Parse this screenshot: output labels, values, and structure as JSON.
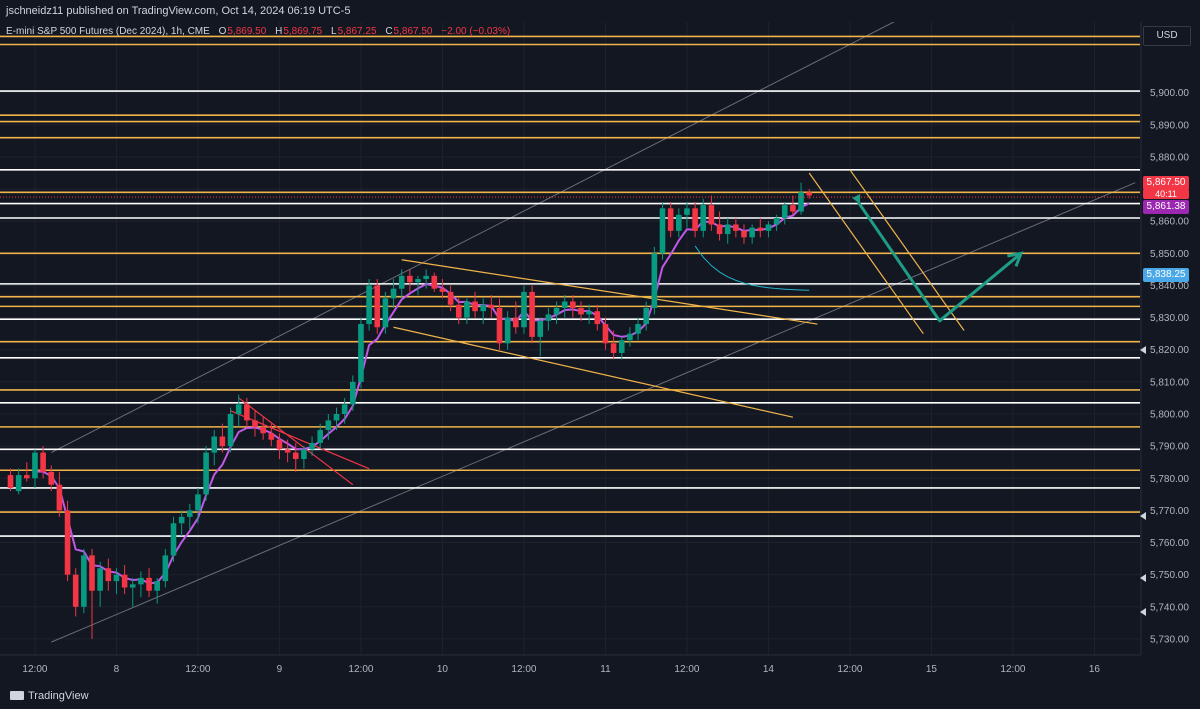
{
  "header": {
    "publisher": "jschneidz11 published on TradingView.com, Oct 14, 2024 06:19 UTC-5",
    "symbol_line": "E-mini S&P 500 Futures (Dec 2024), 1h, CME",
    "ohlc": {
      "o_label": "O",
      "o": "5,869.50",
      "h_label": "H",
      "h": "5,869.75",
      "l_label": "L",
      "l": "5,867.25",
      "c_label": "C",
      "c": "5,867.50",
      "change": "−2.00 (−0.03%)"
    },
    "currency": "USD"
  },
  "footer": {
    "brand": "TradingView"
  },
  "price_tags": {
    "last_price": "5,867.50",
    "countdown": "40:11",
    "vwap": "5,861.38",
    "ma": "5,838.25"
  },
  "colors": {
    "background": "#131722",
    "up_candle": "#089981",
    "down_candle": "#f23645",
    "level_orange": "#f0b44a",
    "level_white": "#ffffff",
    "vwap_purple": "#c058e8",
    "ma_teal": "#22b3c9",
    "projection_arrow": "#1f9c86",
    "last_price_tag": "#f23645",
    "vwap_tag": "#9c27b0",
    "ma_tag": "#4aa8e8"
  },
  "chart_data": {
    "type": "candlestick",
    "title": "E-mini S&P 500 Futures (Dec 2024), 1h, CME",
    "ylim": [
      5725,
      5922
    ],
    "y_ticks": [
      5730,
      5740,
      5750,
      5760,
      5770,
      5780,
      5790,
      5800,
      5810,
      5820,
      5830,
      5840,
      5850,
      5860,
      5870,
      5880,
      5890,
      5900
    ],
    "y_tick_labels": [
      "5,730.00",
      "5,740.00",
      "5,750.00",
      "5,760.00",
      "5,770.00",
      "5,780.00",
      "5,790.00",
      "5,800.00",
      "5,810.00",
      "5,820.00",
      "5,830.00",
      "5,840.00",
      "5,850.00",
      "5,860.00",
      "5,870.00",
      "5,880.00",
      "5,890.00",
      "5,900.00"
    ],
    "x_tick_labels": [
      "12:00",
      "8",
      "12:00",
      "9",
      "12:00",
      "10",
      "12:00",
      "11",
      "12:00",
      "14",
      "12:00",
      "15",
      "12:00",
      "16"
    ],
    "x_tick_bar_index": [
      3,
      13,
      23,
      33,
      43,
      53,
      63,
      73,
      83,
      93,
      103,
      113,
      123,
      133
    ],
    "candles": [
      [
        5781,
        5783,
        5776,
        5777
      ],
      [
        5776,
        5783,
        5775,
        5781
      ],
      [
        5781,
        5785,
        5779,
        5780
      ],
      [
        5780,
        5789,
        5777,
        5788
      ],
      [
        5788,
        5790,
        5780,
        5782
      ],
      [
        5782,
        5784,
        5776,
        5778
      ],
      [
        5778,
        5782,
        5768,
        5770
      ],
      [
        5770,
        5773,
        5748,
        5750
      ],
      [
        5750,
        5752,
        5737,
        5740
      ],
      [
        5740,
        5758,
        5738,
        5756
      ],
      [
        5756,
        5758,
        5730,
        5745
      ],
      [
        5745,
        5754,
        5740,
        5752
      ],
      [
        5752,
        5755,
        5745,
        5748
      ],
      [
        5748,
        5752,
        5744,
        5750
      ],
      [
        5750,
        5753,
        5744,
        5746
      ],
      [
        5746,
        5749,
        5740,
        5747
      ],
      [
        5747,
        5751,
        5743,
        5749
      ],
      [
        5749,
        5752,
        5743,
        5745
      ],
      [
        5745,
        5749,
        5741,
        5748
      ],
      [
        5748,
        5758,
        5746,
        5756
      ],
      [
        5756,
        5768,
        5754,
        5766
      ],
      [
        5766,
        5770,
        5762,
        5768
      ],
      [
        5768,
        5772,
        5764,
        5770
      ],
      [
        5770,
        5777,
        5766,
        5775
      ],
      [
        5775,
        5790,
        5773,
        5788
      ],
      [
        5788,
        5795,
        5784,
        5793
      ],
      [
        5793,
        5797,
        5788,
        5790
      ],
      [
        5790,
        5802,
        5788,
        5800
      ],
      [
        5800,
        5806,
        5796,
        5803
      ],
      [
        5803,
        5805,
        5796,
        5798
      ],
      [
        5798,
        5801,
        5793,
        5796
      ],
      [
        5796,
        5799,
        5792,
        5794
      ],
      [
        5794,
        5797,
        5790,
        5792
      ],
      [
        5792,
        5794,
        5786,
        5789
      ],
      [
        5789,
        5792,
        5785,
        5788
      ],
      [
        5788,
        5791,
        5782,
        5786
      ],
      [
        5786,
        5790,
        5783,
        5789
      ],
      [
        5789,
        5793,
        5787,
        5791
      ],
      [
        5791,
        5797,
        5789,
        5795
      ],
      [
        5795,
        5800,
        5792,
        5798
      ],
      [
        5798,
        5802,
        5795,
        5800
      ],
      [
        5800,
        5805,
        5797,
        5803
      ],
      [
        5803,
        5812,
        5801,
        5810
      ],
      [
        5810,
        5830,
        5808,
        5828
      ],
      [
        5828,
        5842,
        5826,
        5840
      ],
      [
        5840,
        5842,
        5825,
        5827
      ],
      [
        5827,
        5838,
        5825,
        5836
      ],
      [
        5836,
        5842,
        5833,
        5839
      ],
      [
        5839,
        5845,
        5836,
        5843
      ],
      [
        5843,
        5845,
        5838,
        5841
      ],
      [
        5841,
        5843,
        5837,
        5842
      ],
      [
        5842,
        5845,
        5839,
        5843
      ],
      [
        5843,
        5844,
        5838,
        5839
      ],
      [
        5839,
        5842,
        5836,
        5838
      ],
      [
        5838,
        5840,
        5832,
        5834
      ],
      [
        5834,
        5836,
        5828,
        5830
      ],
      [
        5830,
        5836,
        5828,
        5835
      ],
      [
        5835,
        5838,
        5830,
        5832
      ],
      [
        5832,
        5836,
        5828,
        5834
      ],
      [
        5834,
        5837,
        5830,
        5833
      ],
      [
        5833,
        5836,
        5820,
        5822
      ],
      [
        5822,
        5832,
        5820,
        5830
      ],
      [
        5830,
        5835,
        5825,
        5827
      ],
      [
        5827,
        5840,
        5825,
        5838
      ],
      [
        5838,
        5840,
        5822,
        5824
      ],
      [
        5824,
        5830,
        5818,
        5829
      ],
      [
        5829,
        5833,
        5826,
        5831
      ],
      [
        5831,
        5835,
        5828,
        5833
      ],
      [
        5833,
        5837,
        5830,
        5835
      ],
      [
        5835,
        5837,
        5830,
        5833
      ],
      [
        5833,
        5835,
        5829,
        5831
      ],
      [
        5831,
        5834,
        5828,
        5832
      ],
      [
        5832,
        5834,
        5826,
        5828
      ],
      [
        5828,
        5830,
        5820,
        5822
      ],
      [
        5822,
        5826,
        5817,
        5819
      ],
      [
        5819,
        5824,
        5817,
        5823
      ],
      [
        5823,
        5827,
        5821,
        5825
      ],
      [
        5825,
        5830,
        5823,
        5828
      ],
      [
        5828,
        5835,
        5826,
        5833
      ],
      [
        5833,
        5852,
        5831,
        5850
      ],
      [
        5850,
        5866,
        5848,
        5864
      ],
      [
        5864,
        5866,
        5855,
        5857
      ],
      [
        5857,
        5864,
        5855,
        5862
      ],
      [
        5862,
        5866,
        5858,
        5864
      ],
      [
        5864,
        5866,
        5855,
        5857
      ],
      [
        5857,
        5867,
        5855,
        5865
      ],
      [
        5865,
        5868,
        5857,
        5859
      ],
      [
        5859,
        5863,
        5854,
        5856
      ],
      [
        5856,
        5861,
        5853,
        5859
      ],
      [
        5859,
        5861,
        5855,
        5857
      ],
      [
        5857,
        5859,
        5853,
        5855
      ],
      [
        5855,
        5859,
        5853,
        5858
      ],
      [
        5858,
        5861,
        5855,
        5857
      ],
      [
        5857,
        5860,
        5855,
        5859
      ],
      [
        5859,
        5862,
        5857,
        5861
      ],
      [
        5861,
        5866,
        5859,
        5865
      ],
      [
        5865,
        5868,
        5862,
        5863
      ],
      [
        5863,
        5872,
        5862,
        5869
      ],
      [
        5869,
        5870,
        5867,
        5868
      ]
    ],
    "levels": [
      {
        "price": 5917.5,
        "color": "orange"
      },
      {
        "price": 5915.0,
        "color": "orange"
      },
      {
        "price": 5900.5,
        "color": "white"
      },
      {
        "price": 5893.0,
        "color": "orange"
      },
      {
        "price": 5891.0,
        "color": "orange"
      },
      {
        "price": 5886.0,
        "color": "orange"
      },
      {
        "price": 5876.0,
        "color": "white"
      },
      {
        "price": 5869.0,
        "color": "orange"
      },
      {
        "price": 5865.5,
        "color": "white"
      },
      {
        "price": 5861.0,
        "color": "white"
      },
      {
        "price": 5850.0,
        "color": "orange"
      },
      {
        "price": 5840.5,
        "color": "white"
      },
      {
        "price": 5836.5,
        "color": "orange"
      },
      {
        "price": 5833.5,
        "color": "orange"
      },
      {
        "price": 5829.5,
        "color": "white"
      },
      {
        "price": 5822.5,
        "color": "orange"
      },
      {
        "price": 5817.5,
        "color": "white"
      },
      {
        "price": 5807.5,
        "color": "orange"
      },
      {
        "price": 5803.5,
        "color": "white"
      },
      {
        "price": 5796.0,
        "color": "orange"
      },
      {
        "price": 5789.0,
        "color": "white"
      },
      {
        "price": 5782.5,
        "color": "orange"
      },
      {
        "price": 5777.0,
        "color": "white"
      },
      {
        "price": 5769.5,
        "color": "orange"
      },
      {
        "price": 5762.0,
        "color": "white"
      }
    ],
    "channel_lines": [
      {
        "from": [
          5,
          5788
        ],
        "to": [
          113,
          5928
        ]
      },
      {
        "from": [
          5,
          5729
        ],
        "to": [
          138,
          5872
        ]
      }
    ],
    "trend_lines": [
      {
        "from": [
          48,
          5848
        ],
        "to": [
          99,
          5828
        ],
        "color": "orange"
      },
      {
        "from": [
          47,
          5827
        ],
        "to": [
          96,
          5799
        ],
        "color": "orange"
      },
      {
        "from": [
          28,
          5805
        ],
        "to": [
          42,
          5778
        ],
        "color": "red"
      },
      {
        "from": [
          27,
          5801
        ],
        "to": [
          44,
          5783
        ],
        "color": "red"
      },
      {
        "from": [
          98,
          5875
        ],
        "to": [
          112,
          5825
        ],
        "color": "orange"
      },
      {
        "from": [
          103,
          5876
        ],
        "to": [
          117,
          5826
        ],
        "color": "orange"
      }
    ],
    "projection_path": [
      [
        104,
        5866
      ],
      [
        114,
        5829
      ],
      [
        124,
        5850
      ]
    ],
    "vwap_value": 5861.38,
    "ma_value": 5838.25,
    "last_price": 5867.5
  }
}
